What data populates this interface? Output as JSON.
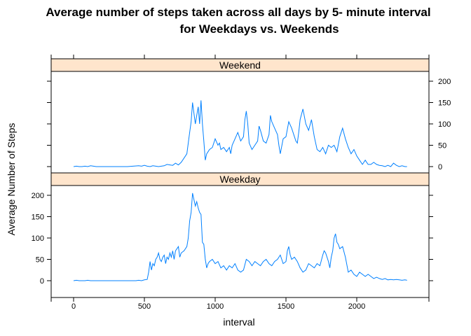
{
  "chart_data": {
    "type": "line",
    "title_line1": "Average number of steps taken across all days by 5- minute interval",
    "title_line2": "for Weekdays vs. Weekends",
    "xlabel": "interval",
    "ylabel": "Average Number of Steps",
    "xlim": [
      -150,
      2505
    ],
    "ylim": [
      -15,
      220
    ],
    "x_ticks": [
      0,
      500,
      1000,
      1500,
      2000
    ],
    "y_ticks": [
      0,
      50,
      100,
      150,
      200
    ],
    "line_color": "#0080ff",
    "strip_color": "#ffe5cc",
    "grid": false,
    "panels": [
      {
        "name": "Weekend",
        "points": [
          [
            0,
            0
          ],
          [
            20,
            1
          ],
          [
            40,
            0
          ],
          [
            60,
            0
          ],
          [
            80,
            1
          ],
          [
            100,
            0
          ],
          [
            120,
            2
          ],
          [
            140,
            1
          ],
          [
            160,
            0
          ],
          [
            180,
            0
          ],
          [
            200,
            0
          ],
          [
            220,
            0
          ],
          [
            260,
            0
          ],
          [
            300,
            0
          ],
          [
            340,
            0
          ],
          [
            380,
            0
          ],
          [
            420,
            1
          ],
          [
            460,
            2
          ],
          [
            480,
            1
          ],
          [
            500,
            3
          ],
          [
            520,
            1
          ],
          [
            540,
            0
          ],
          [
            560,
            2
          ],
          [
            580,
            1
          ],
          [
            600,
            0
          ],
          [
            620,
            1
          ],
          [
            640,
            2
          ],
          [
            660,
            5
          ],
          [
            680,
            4
          ],
          [
            700,
            3
          ],
          [
            720,
            8
          ],
          [
            740,
            4
          ],
          [
            760,
            10
          ],
          [
            780,
            20
          ],
          [
            800,
            30
          ],
          [
            810,
            55
          ],
          [
            820,
            80
          ],
          [
            830,
            105
          ],
          [
            840,
            150
          ],
          [
            850,
            125
          ],
          [
            860,
            100
          ],
          [
            870,
            120
          ],
          [
            880,
            140
          ],
          [
            890,
            100
          ],
          [
            900,
            155
          ],
          [
            910,
            100
          ],
          [
            920,
            60
          ],
          [
            930,
            15
          ],
          [
            940,
            30
          ],
          [
            950,
            35
          ],
          [
            960,
            40
          ],
          [
            980,
            45
          ],
          [
            1000,
            65
          ],
          [
            1020,
            50
          ],
          [
            1030,
            55
          ],
          [
            1040,
            40
          ],
          [
            1060,
            45
          ],
          [
            1080,
            35
          ],
          [
            1100,
            45
          ],
          [
            1110,
            30
          ],
          [
            1120,
            50
          ],
          [
            1140,
            65
          ],
          [
            1160,
            80
          ],
          [
            1180,
            60
          ],
          [
            1200,
            70
          ],
          [
            1210,
            110
          ],
          [
            1220,
            130
          ],
          [
            1230,
            100
          ],
          [
            1240,
            55
          ],
          [
            1260,
            40
          ],
          [
            1280,
            50
          ],
          [
            1300,
            60
          ],
          [
            1310,
            95
          ],
          [
            1320,
            85
          ],
          [
            1340,
            60
          ],
          [
            1360,
            55
          ],
          [
            1380,
            75
          ],
          [
            1390,
            120
          ],
          [
            1400,
            105
          ],
          [
            1420,
            90
          ],
          [
            1440,
            75
          ],
          [
            1450,
            50
          ],
          [
            1460,
            30
          ],
          [
            1480,
            65
          ],
          [
            1500,
            70
          ],
          [
            1520,
            105
          ],
          [
            1540,
            90
          ],
          [
            1560,
            70
          ],
          [
            1570,
            60
          ],
          [
            1580,
            55
          ],
          [
            1590,
            80
          ],
          [
            1600,
            110
          ],
          [
            1620,
            135
          ],
          [
            1640,
            100
          ],
          [
            1660,
            85
          ],
          [
            1680,
            110
          ],
          [
            1700,
            70
          ],
          [
            1720,
            40
          ],
          [
            1740,
            35
          ],
          [
            1760,
            45
          ],
          [
            1780,
            30
          ],
          [
            1800,
            50
          ],
          [
            1820,
            45
          ],
          [
            1840,
            50
          ],
          [
            1860,
            35
          ],
          [
            1880,
            70
          ],
          [
            1900,
            90
          ],
          [
            1920,
            65
          ],
          [
            1940,
            45
          ],
          [
            1960,
            30
          ],
          [
            1980,
            40
          ],
          [
            2000,
            25
          ],
          [
            2020,
            15
          ],
          [
            2040,
            5
          ],
          [
            2060,
            15
          ],
          [
            2080,
            5
          ],
          [
            2100,
            5
          ],
          [
            2120,
            10
          ],
          [
            2140,
            5
          ],
          [
            2160,
            3
          ],
          [
            2180,
            2
          ],
          [
            2200,
            0
          ],
          [
            2220,
            3
          ],
          [
            2240,
            0
          ],
          [
            2260,
            8
          ],
          [
            2280,
            3
          ],
          [
            2300,
            0
          ],
          [
            2320,
            2
          ],
          [
            2340,
            0
          ],
          [
            2355,
            0
          ]
        ]
      },
      {
        "name": "Weekday",
        "points": [
          [
            0,
            0
          ],
          [
            20,
            1
          ],
          [
            40,
            0
          ],
          [
            60,
            0
          ],
          [
            80,
            0
          ],
          [
            100,
            1
          ],
          [
            120,
            0
          ],
          [
            140,
            0
          ],
          [
            160,
            0
          ],
          [
            180,
            0
          ],
          [
            200,
            0
          ],
          [
            220,
            0
          ],
          [
            240,
            0
          ],
          [
            260,
            0
          ],
          [
            280,
            0
          ],
          [
            300,
            0
          ],
          [
            320,
            0
          ],
          [
            340,
            0
          ],
          [
            360,
            0
          ],
          [
            380,
            0
          ],
          [
            400,
            0
          ],
          [
            420,
            0
          ],
          [
            440,
            0
          ],
          [
            460,
            1
          ],
          [
            480,
            0
          ],
          [
            500,
            2
          ],
          [
            520,
            3
          ],
          [
            530,
            20
          ],
          [
            540,
            45
          ],
          [
            550,
            25
          ],
          [
            560,
            40
          ],
          [
            570,
            35
          ],
          [
            580,
            50
          ],
          [
            590,
            55
          ],
          [
            600,
            65
          ],
          [
            610,
            50
          ],
          [
            620,
            45
          ],
          [
            630,
            55
          ],
          [
            640,
            60
          ],
          [
            650,
            40
          ],
          [
            660,
            55
          ],
          [
            670,
            50
          ],
          [
            680,
            65
          ],
          [
            690,
            55
          ],
          [
            700,
            70
          ],
          [
            710,
            50
          ],
          [
            720,
            70
          ],
          [
            740,
            80
          ],
          [
            750,
            55
          ],
          [
            760,
            65
          ],
          [
            780,
            70
          ],
          [
            800,
            80
          ],
          [
            810,
            100
          ],
          [
            820,
            140
          ],
          [
            830,
            160
          ],
          [
            840,
            205
          ],
          [
            850,
            190
          ],
          [
            860,
            175
          ],
          [
            870,
            185
          ],
          [
            880,
            170
          ],
          [
            890,
            160
          ],
          [
            900,
            155
          ],
          [
            910,
            90
          ],
          [
            920,
            85
          ],
          [
            930,
            50
          ],
          [
            940,
            30
          ],
          [
            950,
            40
          ],
          [
            960,
            45
          ],
          [
            980,
            50
          ],
          [
            1000,
            40
          ],
          [
            1020,
            45
          ],
          [
            1040,
            30
          ],
          [
            1060,
            35
          ],
          [
            1080,
            25
          ],
          [
            1100,
            35
          ],
          [
            1120,
            30
          ],
          [
            1140,
            40
          ],
          [
            1160,
            25
          ],
          [
            1180,
            20
          ],
          [
            1200,
            25
          ],
          [
            1220,
            50
          ],
          [
            1240,
            45
          ],
          [
            1260,
            35
          ],
          [
            1280,
            45
          ],
          [
            1300,
            40
          ],
          [
            1320,
            35
          ],
          [
            1340,
            45
          ],
          [
            1360,
            50
          ],
          [
            1380,
            40
          ],
          [
            1400,
            35
          ],
          [
            1420,
            45
          ],
          [
            1440,
            50
          ],
          [
            1450,
            55
          ],
          [
            1460,
            60
          ],
          [
            1480,
            40
          ],
          [
            1500,
            45
          ],
          [
            1510,
            70
          ],
          [
            1520,
            80
          ],
          [
            1530,
            60
          ],
          [
            1540,
            50
          ],
          [
            1560,
            55
          ],
          [
            1580,
            45
          ],
          [
            1600,
            30
          ],
          [
            1620,
            20
          ],
          [
            1640,
            25
          ],
          [
            1660,
            40
          ],
          [
            1680,
            35
          ],
          [
            1700,
            30
          ],
          [
            1720,
            40
          ],
          [
            1740,
            35
          ],
          [
            1760,
            60
          ],
          [
            1770,
            70
          ],
          [
            1780,
            65
          ],
          [
            1800,
            45
          ],
          [
            1810,
            30
          ],
          [
            1820,
            55
          ],
          [
            1830,
            70
          ],
          [
            1840,
            100
          ],
          [
            1850,
            110
          ],
          [
            1860,
            90
          ],
          [
            1870,
            85
          ],
          [
            1880,
            75
          ],
          [
            1900,
            80
          ],
          [
            1920,
            55
          ],
          [
            1940,
            20
          ],
          [
            1960,
            25
          ],
          [
            1980,
            15
          ],
          [
            2000,
            10
          ],
          [
            2020,
            20
          ],
          [
            2040,
            15
          ],
          [
            2060,
            10
          ],
          [
            2080,
            15
          ],
          [
            2100,
            10
          ],
          [
            2120,
            5
          ],
          [
            2140,
            8
          ],
          [
            2160,
            5
          ],
          [
            2180,
            3
          ],
          [
            2200,
            5
          ],
          [
            2220,
            2
          ],
          [
            2240,
            3
          ],
          [
            2260,
            2
          ],
          [
            2280,
            3
          ],
          [
            2300,
            2
          ],
          [
            2320,
            1
          ],
          [
            2340,
            2
          ],
          [
            2355,
            1
          ]
        ]
      }
    ]
  }
}
